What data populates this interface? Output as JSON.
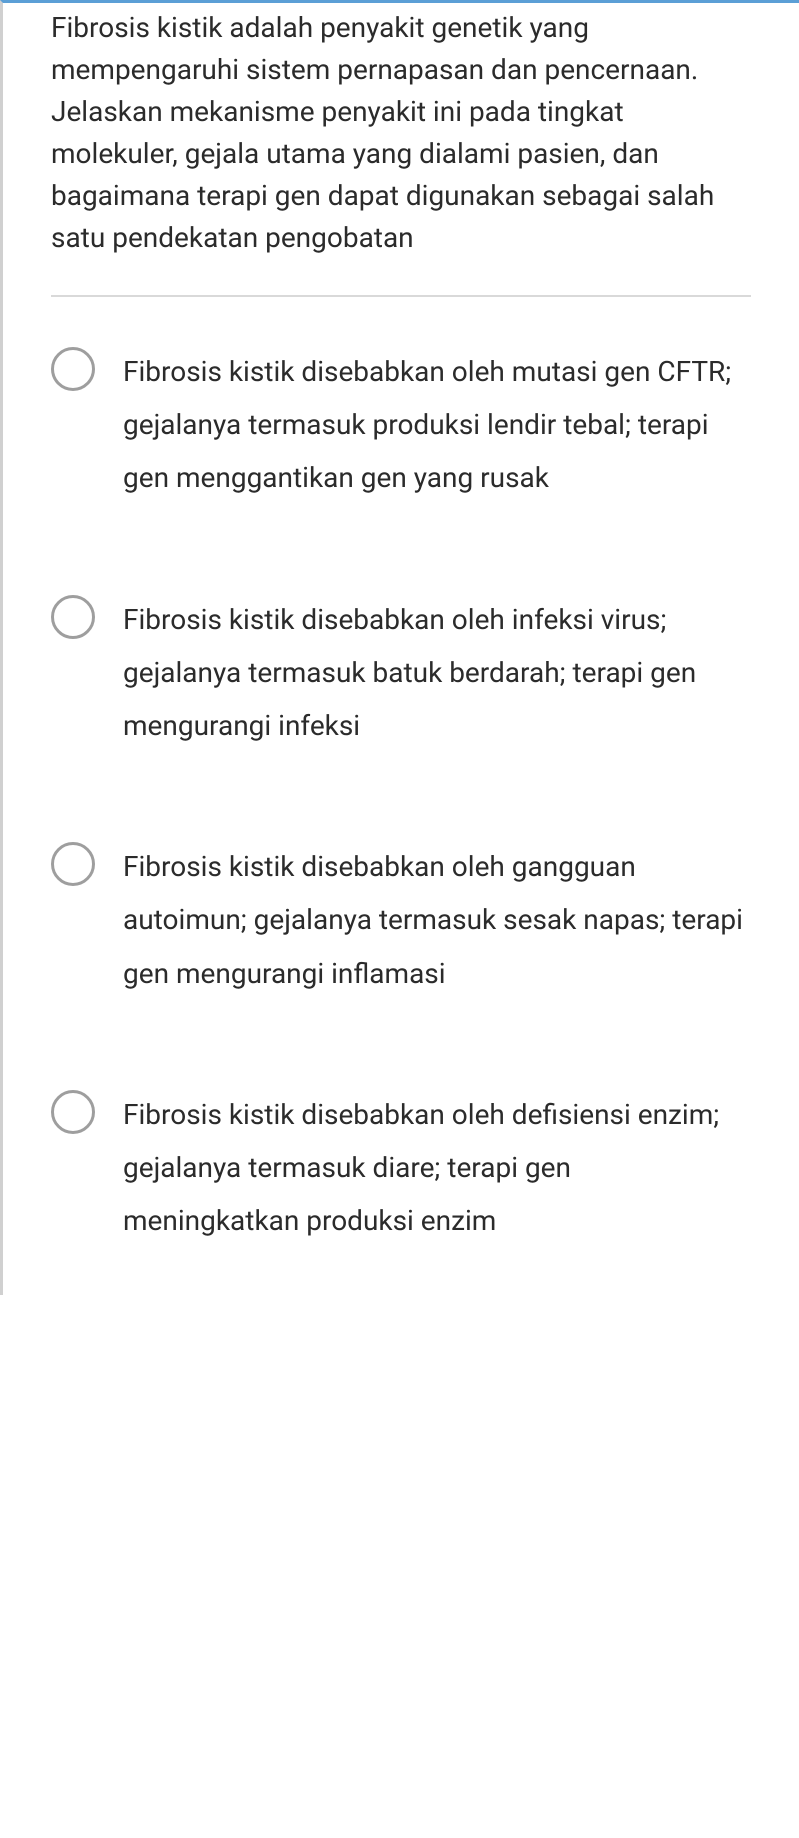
{
  "question": "Fibrosis kistik adalah penyakit genetik yang mempengaruhi sistem pernapasan dan pencernaan. Jelaskan mekanisme penyakit ini pada tingkat molekuler, gejala utama yang dialami pasien, dan bagaimana terapi gen dapat digunakan sebagai salah satu pendekatan pengobatan",
  "options": [
    {
      "text": "Fibrosis kistik disebabkan oleh mutasi gen CFTR; gejalanya termasuk produksi lendir tebal; terapi gen menggantikan gen yang rusak"
    },
    {
      "text": "Fibrosis kistik disebabkan oleh infeksi virus; gejalanya termasuk batuk berdarah; terapi gen mengurangi infeksi"
    },
    {
      "text": "Fibrosis kistik disebabkan oleh gangguan autoimun; gejalanya termasuk sesak napas; terapi gen mengurangi inflamasi"
    },
    {
      "text": "Fibrosis kistik disebabkan oleh defisiensi enzim; gejalanya termasuk diare; terapi gen meningkatkan produksi enzim"
    }
  ],
  "colors": {
    "accent_top": "#5b9fd6",
    "border_left": "#d0d0d0",
    "divider": "#d9d9d9",
    "radio_border": "#9e9e9e",
    "text": "#2b2b2b",
    "background": "#ffffff"
  },
  "typography": {
    "question_fontsize": 28,
    "option_fontsize": 28,
    "question_lineheight": 1.5,
    "option_lineheight": 1.9
  }
}
